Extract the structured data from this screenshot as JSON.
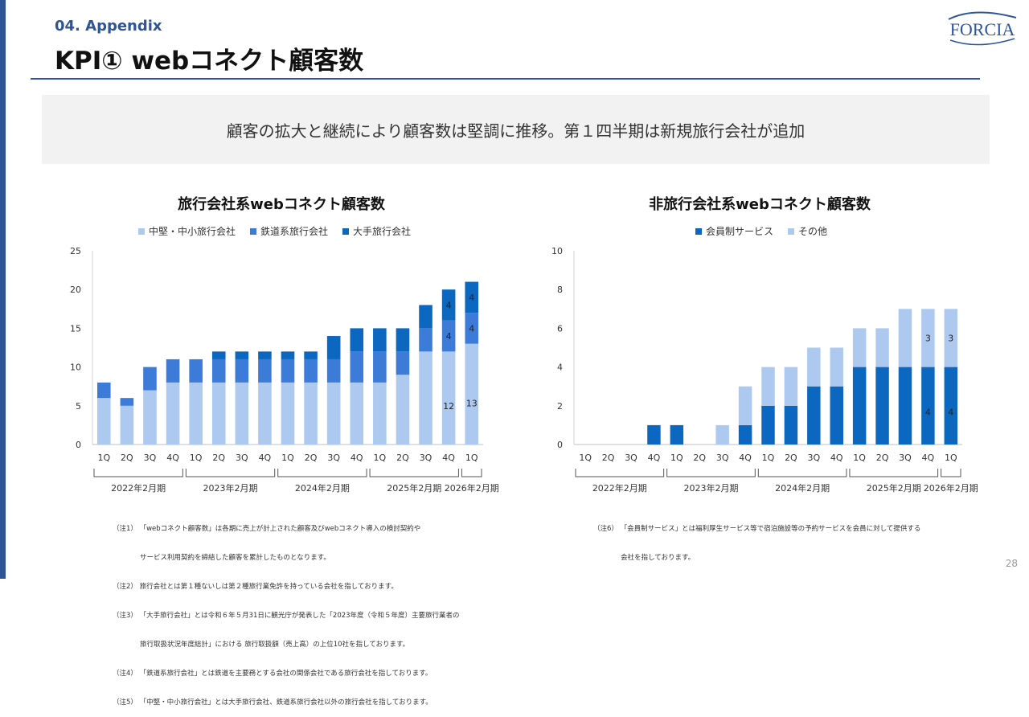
{
  "header": {
    "section": "04. Appendix",
    "title": "KPI① webコネクト顧客数",
    "logo_text": "FORCIA"
  },
  "summary": "顧客の拡大と継続により顧客数は堅調に推移。第１四半期は新規旅行会社が追加",
  "colors": {
    "accent": "#2f5597",
    "light": "#aec9f0",
    "medium": "#3d7bd9",
    "dark": "#0b67bf"
  },
  "chart_data": [
    {
      "type": "bar",
      "stacked": true,
      "title": "旅行会社系webコネクト顧客数",
      "categories": [
        "1Q",
        "2Q",
        "3Q",
        "4Q",
        "1Q",
        "2Q",
        "3Q",
        "4Q",
        "1Q",
        "2Q",
        "3Q",
        "4Q",
        "1Q",
        "2Q",
        "3Q",
        "4Q",
        "1Q"
      ],
      "groups": [
        {
          "label": "2022年2月期",
          "count": 4
        },
        {
          "label": "2023年2月期",
          "count": 4
        },
        {
          "label": "2024年2月期",
          "count": 4
        },
        {
          "label": "2025年2月期",
          "count": 4
        },
        {
          "label": "2026年2月期",
          "count": 1
        }
      ],
      "series": [
        {
          "name": "中堅・中小旅行会社",
          "color": "#aec9f0",
          "values": [
            6,
            5,
            7,
            8,
            8,
            8,
            8,
            8,
            8,
            8,
            8,
            8,
            8,
            9,
            12,
            12,
            13
          ]
        },
        {
          "name": "鉄道系旅行会社",
          "color": "#3d7bd9",
          "values": [
            2,
            1,
            3,
            3,
            3,
            3,
            3,
            3,
            3,
            3,
            3,
            4,
            4,
            3,
            3,
            4,
            4
          ]
        },
        {
          "name": "大手旅行会社",
          "color": "#0b67bf",
          "values": [
            0,
            0,
            0,
            0,
            0,
            1,
            1,
            1,
            1,
            1,
            3,
            3,
            3,
            3,
            3,
            4,
            4
          ]
        }
      ],
      "data_labels": [
        {
          "index": 15,
          "series": 0,
          "text": "12"
        },
        {
          "index": 15,
          "series": 1,
          "text": "4"
        },
        {
          "index": 15,
          "series": 2,
          "text": "4"
        },
        {
          "index": 16,
          "series": 0,
          "text": "13"
        },
        {
          "index": 16,
          "series": 1,
          "text": "4"
        },
        {
          "index": 16,
          "series": 2,
          "text": "4"
        }
      ],
      "ylim": [
        0,
        25
      ],
      "yticks": [
        0,
        5,
        10,
        15,
        20,
        25
      ],
      "legend_position": "top"
    },
    {
      "type": "bar",
      "stacked": true,
      "title": "非旅行会社系webコネクト顧客数",
      "categories": [
        "1Q",
        "2Q",
        "3Q",
        "4Q",
        "1Q",
        "2Q",
        "3Q",
        "4Q",
        "1Q",
        "2Q",
        "3Q",
        "4Q",
        "1Q",
        "2Q",
        "3Q",
        "4Q",
        "1Q"
      ],
      "groups": [
        {
          "label": "2022年2月期",
          "count": 4
        },
        {
          "label": "2023年2月期",
          "count": 4
        },
        {
          "label": "2024年2月期",
          "count": 4
        },
        {
          "label": "2025年2月期",
          "count": 4
        },
        {
          "label": "2026年2月期",
          "count": 1
        }
      ],
      "series": [
        {
          "name": "会員制サービス",
          "color": "#0b67bf",
          "values": [
            0,
            0,
            0,
            1,
            1,
            0,
            0,
            1,
            2,
            2,
            3,
            3,
            4,
            4,
            4,
            4,
            4
          ]
        },
        {
          "name": "その他",
          "color": "#aec9f0",
          "values": [
            0,
            0,
            0,
            0,
            0,
            0,
            1,
            2,
            2,
            2,
            2,
            2,
            2,
            2,
            3,
            3,
            3
          ]
        }
      ],
      "data_labels": [
        {
          "index": 15,
          "series": 0,
          "text": "4"
        },
        {
          "index": 15,
          "series": 1,
          "text": "3"
        },
        {
          "index": 16,
          "series": 0,
          "text": "4"
        },
        {
          "index": 16,
          "series": 1,
          "text": "3"
        }
      ],
      "ylim": [
        0,
        10
      ],
      "yticks": [
        0,
        2,
        4,
        6,
        8,
        10
      ],
      "legend_position": "top"
    }
  ],
  "notes_left": [
    "（注1） 「webコネクト顧客数」は各期に売上が計上された顧客及びwebコネクト導入の検討契約や",
    "　　　　サービス利用契約を締結した顧客を累計したものとなります。",
    "（注2） 旅行会社とは第１種ないしは第２種旅行業免許を持っている会社を指しております。",
    "（注3） 「大手旅行会社」とは令和６年５月31日に観光庁が発表した「2023年度（令和５年度）主要旅行業者の",
    "　　　　旅行取扱状況年度総計」における 旅行取扱額（売上高）の上位10社を指しております。",
    "（注4） 「鉄道系旅行会社」とは鉄道を主要務とする会社の関係会社である旅行会社を指しております。",
    "（注5） 「中堅・中小旅行会社」とは大手旅行会社、鉄道系旅行会社以外の旅行会社を指しております。"
  ],
  "notes_right": [
    "（注6） 「会員制サービス」とは福利厚生サービス等で宿泊施設等の予約サービスを会員に対して提供する",
    "　　　　会社を指しております。"
  ],
  "page_number": "28"
}
